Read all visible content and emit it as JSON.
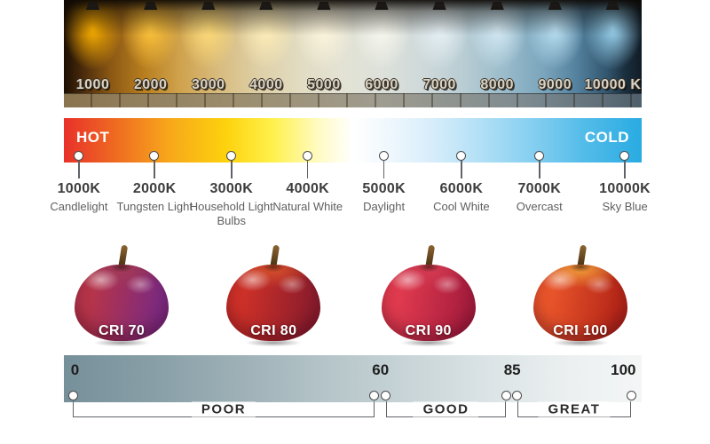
{
  "kelvin_photo": {
    "lamps": [
      {
        "label": "1000",
        "glow": "#ffb300"
      },
      {
        "label": "2000",
        "glow": "#ffc63d"
      },
      {
        "label": "3000",
        "glow": "#ffdc78"
      },
      {
        "label": "4000",
        "glow": "#ffeeb8"
      },
      {
        "label": "5000",
        "glow": "#fdf6dd"
      },
      {
        "label": "6000",
        "glow": "#f8f8ee"
      },
      {
        "label": "7000",
        "glow": "#e8f2f6"
      },
      {
        "label": "8000",
        "glow": "#d6ebf6"
      },
      {
        "label": "9000",
        "glow": "#bce2f4"
      },
      {
        "label": "10000 K",
        "glow": "#9ed7f3"
      }
    ]
  },
  "temperature_scale": {
    "hot_label": "HOT",
    "cold_label": "COLD",
    "hot_text_color": "#ffffff",
    "cold_text_color": "#ffffff",
    "gradient_hot_color": "#e8312a",
    "gradient_mid_color": "#ffffff",
    "gradient_cold_color": "#29abe2",
    "markers": [
      {
        "kelvin": "1000K",
        "name": "Candlelight",
        "position_pct": 2.6
      },
      {
        "kelvin": "2000K",
        "name": "Tungsten Light",
        "position_pct": 15.7
      },
      {
        "kelvin": "3000K",
        "name": "Household Light Bulbs",
        "position_pct": 29.0
      },
      {
        "kelvin": "4000K",
        "name": "Natural White",
        "position_pct": 42.2
      },
      {
        "kelvin": "5000K",
        "name": "Daylight",
        "position_pct": 55.4
      },
      {
        "kelvin": "6000K",
        "name": "Cool White",
        "position_pct": 68.8
      },
      {
        "kelvin": "7000K",
        "name": "Overcast",
        "position_pct": 82.3
      },
      {
        "kelvin": "10000K",
        "name": "Sky Blue",
        "position_pct": 97.1
      }
    ]
  },
  "cri_section": {
    "apples": [
      {
        "label": "CRI 70",
        "body_left": "#b5344a",
        "body_right": "#7c2a80",
        "top": "#a03a58"
      },
      {
        "label": "CRI 80",
        "body_left": "#cc3028",
        "body_right": "#8c1d2c",
        "top": "#d4502c"
      },
      {
        "label": "CRI 90",
        "body_left": "#e03a4e",
        "body_right": "#a81d3e",
        "top": "#d23b52"
      },
      {
        "label": "CRI 100",
        "body_left": "#e8542a",
        "body_right": "#b52618",
        "top": "#ef9b3a"
      }
    ],
    "scale": {
      "bar_left_color": "#76909a",
      "bar_right_color": "#f4f6f6",
      "ticks": [
        {
          "value": "0",
          "position_pct": 1.2,
          "align": "left"
        },
        {
          "value": "60",
          "position_pct": 54.8,
          "align": "center"
        },
        {
          "value": "85",
          "position_pct": 77.6,
          "align": "center"
        },
        {
          "value": "100",
          "position_pct": 99.0,
          "align": "right"
        }
      ],
      "circles_pct": [
        1.54,
        53.76,
        55.76,
        76.5,
        78.49,
        98.16
      ],
      "ranges": [
        {
          "label": "POOR",
          "from_pct": 1.54,
          "to_pct": 53.76
        },
        {
          "label": "GOOD",
          "from_pct": 55.76,
          "to_pct": 76.5
        },
        {
          "label": "GREAT",
          "from_pct": 78.49,
          "to_pct": 98.16
        }
      ]
    }
  }
}
